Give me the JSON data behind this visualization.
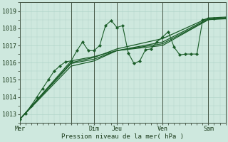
{
  "xlabel": "Pression niveau de la mer( hPa )",
  "background_color": "#cee8de",
  "grid_color": "#b0d4c8",
  "line_color": "#1a5c28",
  "ylim": [
    1012.5,
    1019.5
  ],
  "yticks": [
    1013,
    1014,
    1015,
    1016,
    1017,
    1018,
    1019
  ],
  "xlim": [
    0,
    108
  ],
  "vlines": [
    27,
    39,
    51,
    75,
    99
  ],
  "xtick_pos": [
    0,
    27,
    39,
    51,
    75,
    99
  ],
  "xtick_labels": [
    "Mer",
    "",
    "Dim",
    "Jeu",
    "Ven",
    "Sam"
  ],
  "smooth_series": [
    [
      [
        0,
        1012.7
      ],
      [
        27,
        1015.8
      ],
      [
        39,
        1016.1
      ],
      [
        51,
        1016.7
      ],
      [
        75,
        1017.1
      ],
      [
        99,
        1018.5
      ],
      [
        108,
        1018.6
      ]
    ],
    [
      [
        0,
        1012.7
      ],
      [
        27,
        1016.0
      ],
      [
        39,
        1016.3
      ],
      [
        51,
        1016.8
      ],
      [
        75,
        1017.4
      ],
      [
        99,
        1018.6
      ],
      [
        108,
        1018.65
      ]
    ],
    [
      [
        0,
        1012.7
      ],
      [
        27,
        1016.1
      ],
      [
        39,
        1016.35
      ],
      [
        51,
        1016.7
      ],
      [
        75,
        1017.2
      ],
      [
        99,
        1018.55
      ],
      [
        108,
        1018.6
      ]
    ],
    [
      [
        0,
        1012.7
      ],
      [
        27,
        1015.95
      ],
      [
        39,
        1016.2
      ],
      [
        51,
        1016.7
      ],
      [
        75,
        1017.0
      ],
      [
        99,
        1018.5
      ],
      [
        108,
        1018.55
      ]
    ]
  ],
  "detail_series": [
    [
      0,
      1012.7
    ],
    [
      3,
      1013.05
    ],
    [
      6,
      1013.5
    ],
    [
      9,
      1014.0
    ],
    [
      12,
      1014.5
    ],
    [
      15,
      1015.0
    ],
    [
      18,
      1015.5
    ],
    [
      21,
      1015.8
    ],
    [
      24,
      1016.05
    ],
    [
      27,
      1016.1
    ],
    [
      30,
      1016.7
    ],
    [
      33,
      1017.2
    ],
    [
      36,
      1016.7
    ],
    [
      39,
      1016.7
    ],
    [
      42,
      1017.0
    ],
    [
      45,
      1018.15
    ],
    [
      48,
      1018.45
    ],
    [
      51,
      1018.05
    ],
    [
      54,
      1018.15
    ],
    [
      57,
      1016.55
    ],
    [
      60,
      1015.95
    ],
    [
      63,
      1016.1
    ],
    [
      66,
      1016.75
    ],
    [
      69,
      1016.8
    ],
    [
      72,
      1017.2
    ],
    [
      75,
      1017.5
    ],
    [
      78,
      1017.8
    ],
    [
      81,
      1016.9
    ],
    [
      84,
      1016.45
    ],
    [
      87,
      1016.5
    ],
    [
      90,
      1016.5
    ],
    [
      93,
      1016.5
    ],
    [
      96,
      1018.5
    ],
    [
      99,
      1018.55
    ],
    [
      102,
      1018.55
    ],
    [
      108,
      1018.6
    ]
  ]
}
